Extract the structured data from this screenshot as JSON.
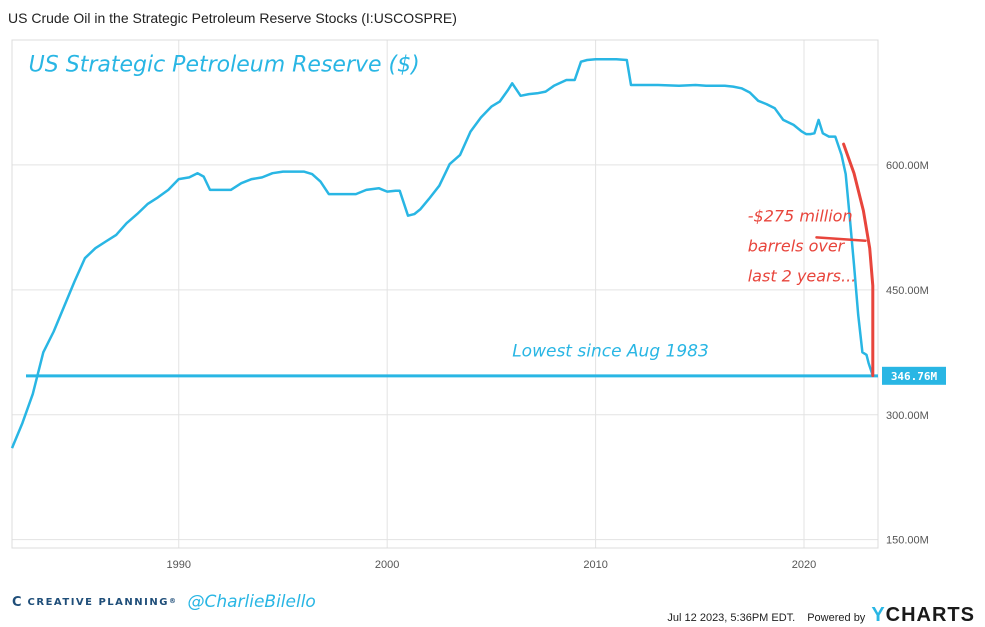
{
  "header": {
    "title": "US Crude Oil in the Strategic Petroleum Reserve Stocks (I:USCOSPRE)"
  },
  "chart_data": {
    "type": "line",
    "title": "US Crude Oil in the Strategic Petroleum Reserve Stocks (I:USCOSPRE)",
    "xlabel": "",
    "ylabel": "",
    "xlim": [
      1982.0,
      2023.55
    ],
    "ylim": [
      140,
      750
    ],
    "x_ticks": [
      1990,
      2000,
      2010,
      2020
    ],
    "x_tick_labels": [
      "1990",
      "2000",
      "2010",
      "2020"
    ],
    "y_ticks": [
      150,
      300,
      450,
      600
    ],
    "y_tick_labels": [
      "150.00M",
      "300.00M",
      "450.00M",
      "600.00M"
    ],
    "grid": true,
    "series": [
      {
        "color": "#29b6e4",
        "x": [
          1982.0,
          1982.5,
          1983.0,
          1983.5,
          1984.0,
          1984.5,
          1985.0,
          1985.5,
          1986.0,
          1986.5,
          1987.0,
          1987.5,
          1988.0,
          1988.5,
          1989.0,
          1989.5,
          1990.0,
          1990.5,
          1990.9,
          1991.2,
          1991.5,
          1992.0,
          1992.5,
          1993.0,
          1993.5,
          1994.0,
          1994.5,
          1995.0,
          1995.5,
          1996.0,
          1996.4,
          1996.8,
          1997.2,
          1998.0,
          1998.5,
          1999.0,
          1999.6,
          2000.0,
          2000.4,
          2000.6,
          2001.0,
          2001.3,
          2001.6,
          2002.0,
          2002.5,
          2003.0,
          2003.5,
          2004.0,
          2004.5,
          2005.0,
          2005.4,
          2005.8,
          2006.0,
          2006.4,
          2006.8,
          2007.2,
          2007.6,
          2008.0,
          2008.6,
          2009.0,
          2009.3,
          2009.6,
          2010.0,
          2010.5,
          2011.0,
          2011.5,
          2011.7,
          2012.0,
          2013.0,
          2014.0,
          2014.8,
          2015.3,
          2015.8,
          2016.2,
          2016.6,
          2017.0,
          2017.4,
          2017.8,
          2018.2,
          2018.6,
          2019.0,
          2019.5,
          2019.9,
          2020.1,
          2020.3,
          2020.5,
          2020.7,
          2020.9,
          2021.2,
          2021.5,
          2021.8,
          2022.0,
          2022.2,
          2022.4,
          2022.6,
          2022.8,
          2023.0,
          2023.1,
          2023.3
        ],
        "y": [
          260,
          290,
          325,
          375,
          400,
          430,
          460,
          488,
          500,
          508,
          516,
          530,
          541,
          553,
          561,
          570,
          583,
          585,
          590,
          586,
          570,
          570,
          570,
          578,
          583,
          585,
          590,
          592,
          592,
          592,
          589,
          580,
          565,
          565,
          565,
          570,
          572,
          568,
          569,
          569,
          539,
          541,
          547,
          559,
          575,
          601,
          612,
          640,
          657,
          670,
          676,
          690,
          698,
          683,
          685,
          686,
          688,
          695,
          702,
          702,
          724,
          726,
          727,
          727,
          727,
          726,
          696,
          696,
          696,
          695,
          696,
          695,
          695,
          695,
          694,
          692,
          687,
          677,
          673,
          668,
          654,
          648,
          640,
          637,
          637,
          638,
          654,
          638,
          634,
          634,
          612,
          589,
          535,
          480,
          420,
          375,
          372,
          362,
          347
        ]
      }
    ],
    "reference_line": {
      "value": 346.76,
      "label": "346.76M",
      "color": "#29b6e4"
    },
    "annotations": [
      {
        "text": "US Strategic Petroleum Reserve ($)",
        "color": "#29b6e4",
        "x": 1982.8,
        "y": 712
      },
      {
        "text": "-$275 million",
        "color": "#e8453c",
        "x": 2017.3,
        "y": 532
      },
      {
        "text": "barrels over",
        "color": "#e8453c",
        "x": 2017.3,
        "y": 496
      },
      {
        "text": "last 2 years...",
        "color": "#e8453c",
        "x": 2017.3,
        "y": 460
      },
      {
        "text": "Lowest since Aug 1983",
        "color": "#29b6e4",
        "x": 2006.0,
        "y": 370
      }
    ],
    "marker_line": {
      "color": "#e8453c",
      "x": [
        2021.9,
        2022.4,
        2022.85,
        2023.15,
        2023.3,
        2023.3
      ],
      "y": [
        625,
        590,
        545,
        500,
        455,
        347
      ],
      "connector": {
        "x": [
          2020.6,
          2022.95
        ],
        "y": [
          513,
          509
        ]
      }
    }
  },
  "footer": {
    "brand_logo": "C",
    "brand_name": "CREATIVE PLANNING",
    "brand_mark": "®",
    "handle": "@CharlieBilello",
    "timestamp": "Jul 12 2023, 5:36PM EDT.",
    "powered_by": "Powered by",
    "ycharts_y": "Y",
    "ycharts_rest": "CHARTS"
  }
}
